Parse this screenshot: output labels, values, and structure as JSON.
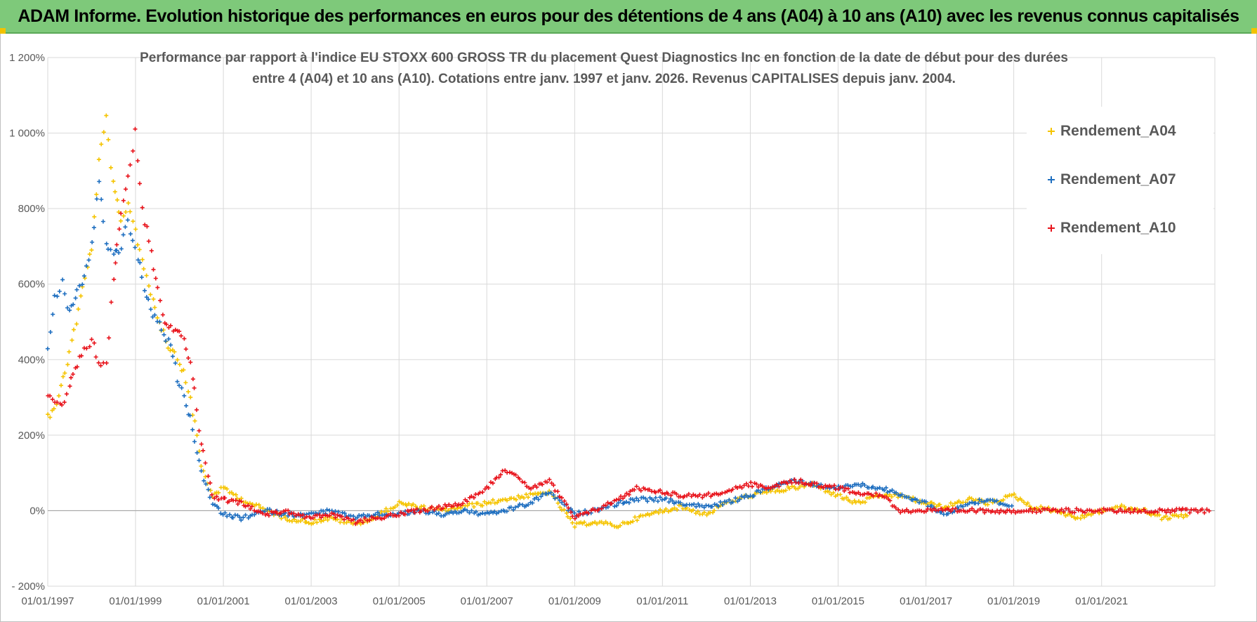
{
  "banner": {
    "title": "ADAM Informe. Evolution historique des performances en euros pour des détentions de 4 ans (A04) à 10 ans (A10) avec les revenus connus capitalisés"
  },
  "chart": {
    "subtitle_line1": "Performance par rapport à l'indice EU STOXX 600 GROSS TR  du placement Quest Diagnostics Inc en fonction de la date de début pour des durées",
    "subtitle_line2": "entre 4 (A04) et 10 ans (A10).  Cotations entre janv. 1997 et janv. 2026. Revenus CAPITALISES depuis janv. 2004."
  },
  "legend": {
    "items": [
      {
        "label": "Rendement_A04",
        "color": "#f5c400"
      },
      {
        "label": "Rendement_A07",
        "color": "#1f6fc0"
      },
      {
        "label": "Rendement_A10",
        "color": "#e8141c"
      }
    ]
  },
  "chart_data": {
    "type": "scatter",
    "title": "Performance par rapport à l'indice EU STOXX 600 GROSS TR  du placement Quest Diagnostics Inc en fonction de la date de début pour des durées entre 4 (A04) et 10 ans (A10).  Cotations entre janv. 1997 et janv. 2026. Revenus CAPITALISES depuis janv. 2004.",
    "xlabel": "",
    "ylabel": "",
    "x_ticks": [
      "01/01/1997",
      "01/01/1999",
      "01/01/2001",
      "01/01/2003",
      "01/01/2005",
      "01/01/2007",
      "01/01/2009",
      "01/01/2011",
      "01/01/2013",
      "01/01/2015",
      "01/01/2017",
      "01/01/2019",
      "01/01/2021"
    ],
    "y_ticks": [
      "- 200%",
      "0%",
      "200%",
      "400%",
      "600%",
      "800%",
      "1 000%",
      "1 200%"
    ],
    "xlim": [
      "1997-01-01",
      "2023-08-01"
    ],
    "ylim": [
      -200,
      1200
    ],
    "grid": true,
    "legend_position": "top-right",
    "series": [
      {
        "name": "Rendement_A04",
        "color": "#f5c400",
        "points": [
          [
            "1997-01-01",
            250
          ],
          [
            "1997-04-01",
            300
          ],
          [
            "1997-07-01",
            420
          ],
          [
            "1997-10-01",
            560
          ],
          [
            "1998-01-01",
            700
          ],
          [
            "1998-03-01",
            920
          ],
          [
            "1998-05-01",
            1040
          ],
          [
            "1998-07-01",
            860
          ],
          [
            "1998-09-01",
            760
          ],
          [
            "1998-11-01",
            820
          ],
          [
            "1999-01-01",
            740
          ],
          [
            "1999-04-01",
            620
          ],
          [
            "1999-07-01",
            520
          ],
          [
            "1999-10-01",
            440
          ],
          [
            "2000-01-01",
            400
          ],
          [
            "2000-04-01",
            300
          ],
          [
            "2000-07-01",
            120
          ],
          [
            "2000-10-01",
            40
          ],
          [
            "2001-01-01",
            60
          ],
          [
            "2001-06-01",
            30
          ],
          [
            "2002-01-01",
            0
          ],
          [
            "2002-06-01",
            -20
          ],
          [
            "2003-01-01",
            -30
          ],
          [
            "2003-06-01",
            -20
          ],
          [
            "2004-01-01",
            -35
          ],
          [
            "2004-06-01",
            -20
          ],
          [
            "2005-01-01",
            20
          ],
          [
            "2005-06-01",
            10
          ],
          [
            "2006-01-01",
            0
          ],
          [
            "2006-06-01",
            10
          ],
          [
            "2007-01-01",
            20
          ],
          [
            "2007-06-01",
            30
          ],
          [
            "2008-01-01",
            40
          ],
          [
            "2008-06-01",
            50
          ],
          [
            "2009-01-01",
            -40
          ],
          [
            "2009-06-01",
            -30
          ],
          [
            "2010-01-01",
            -40
          ],
          [
            "2010-06-01",
            -20
          ],
          [
            "2011-01-01",
            0
          ],
          [
            "2011-06-01",
            10
          ],
          [
            "2012-01-01",
            -10
          ],
          [
            "2012-06-01",
            20
          ],
          [
            "2013-01-01",
            40
          ],
          [
            "2013-06-01",
            50
          ],
          [
            "2014-01-01",
            60
          ],
          [
            "2014-06-01",
            70
          ],
          [
            "2015-01-01",
            40
          ],
          [
            "2015-06-01",
            20
          ],
          [
            "2016-01-01",
            40
          ],
          [
            "2016-06-01",
            40
          ],
          [
            "2017-01-01",
            20
          ],
          [
            "2017-06-01",
            10
          ],
          [
            "2018-01-01",
            30
          ],
          [
            "2018-06-01",
            20
          ],
          [
            "2019-01-01",
            40
          ],
          [
            "2019-06-01",
            10
          ],
          [
            "2020-01-01",
            0
          ],
          [
            "2020-06-01",
            -20
          ],
          [
            "2021-01-01",
            0
          ],
          [
            "2021-06-01",
            10
          ],
          [
            "2022-01-01",
            0
          ],
          [
            "2022-06-01",
            -20
          ],
          [
            "2023-01-01",
            -10
          ]
        ]
      },
      {
        "name": "Rendement_A07",
        "color": "#1f6fc0",
        "points": [
          [
            "1997-01-01",
            430
          ],
          [
            "1997-03-01",
            560
          ],
          [
            "1997-05-01",
            600
          ],
          [
            "1997-07-01",
            520
          ],
          [
            "1997-09-01",
            580
          ],
          [
            "1997-11-01",
            620
          ],
          [
            "1998-01-01",
            700
          ],
          [
            "1998-03-01",
            880
          ],
          [
            "1998-05-01",
            700
          ],
          [
            "1998-07-01",
            680
          ],
          [
            "1998-09-01",
            700
          ],
          [
            "1998-11-01",
            760
          ],
          [
            "1999-01-01",
            700
          ],
          [
            "1999-04-01",
            560
          ],
          [
            "1999-07-01",
            500
          ],
          [
            "1999-10-01",
            450
          ],
          [
            "2000-01-01",
            330
          ],
          [
            "2000-04-01",
            250
          ],
          [
            "2000-07-01",
            100
          ],
          [
            "2000-10-01",
            20
          ],
          [
            "2001-01-01",
            -10
          ],
          [
            "2001-06-01",
            -20
          ],
          [
            "2002-01-01",
            0
          ],
          [
            "2002-06-01",
            -10
          ],
          [
            "2003-01-01",
            -10
          ],
          [
            "2003-06-01",
            0
          ],
          [
            "2004-01-01",
            -20
          ],
          [
            "2004-06-01",
            -10
          ],
          [
            "2005-01-01",
            -10
          ],
          [
            "2005-06-01",
            0
          ],
          [
            "2006-01-01",
            -10
          ],
          [
            "2006-06-01",
            0
          ],
          [
            "2007-01-01",
            -10
          ],
          [
            "2007-06-01",
            0
          ],
          [
            "2008-01-01",
            20
          ],
          [
            "2008-06-01",
            50
          ],
          [
            "2009-01-01",
            -10
          ],
          [
            "2009-06-01",
            0
          ],
          [
            "2010-01-01",
            20
          ],
          [
            "2010-06-01",
            30
          ],
          [
            "2011-01-01",
            30
          ],
          [
            "2011-06-01",
            20
          ],
          [
            "2012-01-01",
            10
          ],
          [
            "2012-06-01",
            20
          ],
          [
            "2013-01-01",
            40
          ],
          [
            "2013-06-01",
            60
          ],
          [
            "2014-01-01",
            80
          ],
          [
            "2014-06-01",
            70
          ],
          [
            "2015-01-01",
            60
          ],
          [
            "2015-06-01",
            70
          ],
          [
            "2016-01-01",
            60
          ],
          [
            "2016-06-01",
            40
          ],
          [
            "2017-01-01",
            20
          ],
          [
            "2017-06-01",
            -10
          ],
          [
            "2018-01-01",
            20
          ],
          [
            "2018-06-01",
            30
          ],
          [
            "2019-01-01",
            10
          ]
        ]
      },
      {
        "name": "Rendement_A10",
        "color": "#e8141c",
        "points": [
          [
            "1997-01-01",
            300
          ],
          [
            "1997-03-01",
            280
          ],
          [
            "1997-05-01",
            270
          ],
          [
            "1997-07-01",
            330
          ],
          [
            "1997-09-01",
            380
          ],
          [
            "1997-11-01",
            430
          ],
          [
            "1998-01-01",
            450
          ],
          [
            "1998-03-01",
            400
          ],
          [
            "1998-05-01",
            380
          ],
          [
            "1998-07-01",
            620
          ],
          [
            "1998-09-01",
            800
          ],
          [
            "1998-11-01",
            880
          ],
          [
            "1999-01-01",
            1000
          ],
          [
            "1999-03-01",
            800
          ],
          [
            "1999-06-01",
            650
          ],
          [
            "1999-09-01",
            500
          ],
          [
            "2000-01-01",
            480
          ],
          [
            "2000-04-01",
            400
          ],
          [
            "2000-07-01",
            180
          ],
          [
            "2000-10-01",
            40
          ],
          [
            "2001-01-01",
            30
          ],
          [
            "2001-06-01",
            20
          ],
          [
            "2002-01-01",
            -10
          ],
          [
            "2002-06-01",
            0
          ],
          [
            "2003-01-01",
            -20
          ],
          [
            "2003-06-01",
            -10
          ],
          [
            "2004-01-01",
            -30
          ],
          [
            "2004-06-01",
            -20
          ],
          [
            "2005-01-01",
            -10
          ],
          [
            "2005-06-01",
            0
          ],
          [
            "2006-01-01",
            10
          ],
          [
            "2006-06-01",
            20
          ],
          [
            "2007-01-01",
            60
          ],
          [
            "2007-06-01",
            110
          ],
          [
            "2008-01-01",
            60
          ],
          [
            "2008-06-01",
            80
          ],
          [
            "2009-01-01",
            -20
          ],
          [
            "2009-06-01",
            0
          ],
          [
            "2010-01-01",
            30
          ],
          [
            "2010-06-01",
            60
          ],
          [
            "2011-01-01",
            50
          ],
          [
            "2011-06-01",
            40
          ],
          [
            "2012-01-01",
            40
          ],
          [
            "2012-06-01",
            50
          ],
          [
            "2013-01-01",
            70
          ],
          [
            "2013-06-01",
            60
          ],
          [
            "2014-01-01",
            80
          ],
          [
            "2014-06-01",
            70
          ],
          [
            "2015-01-01",
            60
          ],
          [
            "2015-06-01",
            50
          ],
          [
            "2016-01-01",
            40
          ],
          [
            "2016-06-01",
            0
          ],
          [
            "2017-01-01",
            0
          ],
          [
            "2018-01-01",
            0
          ],
          [
            "2019-01-01",
            0
          ],
          [
            "2020-01-01",
            0
          ],
          [
            "2021-01-01",
            0
          ],
          [
            "2022-01-01",
            0
          ],
          [
            "2023-01-01",
            0
          ],
          [
            "2023-07-01",
            0
          ]
        ]
      }
    ]
  }
}
